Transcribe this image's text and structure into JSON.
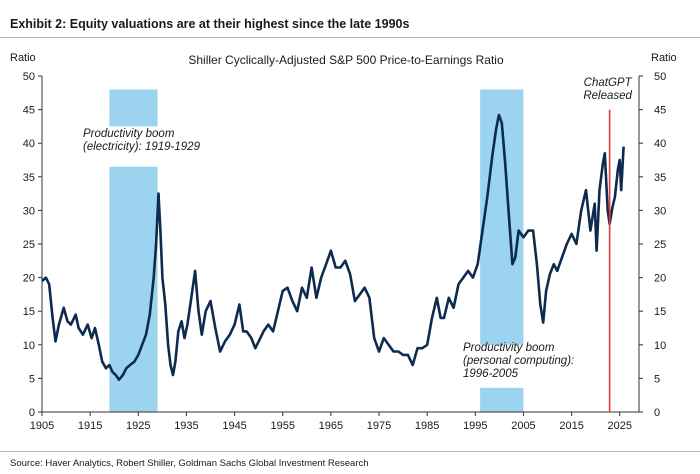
{
  "exhibit_title": "Exhibit 2: Equity valuations are at their highest since the late 1990s",
  "source_note": "Source: Haver Analytics, Robert Shiller, Goldman Sachs Global Investment Research",
  "colors": {
    "line": "#0d2a4f",
    "shade": "#9cd4f0",
    "event_line": "#e23a3a",
    "axis": "#333333"
  },
  "chart_data": {
    "type": "line",
    "title": "Shiller Cyclically-Adjusted S&P 500 Price-to-Earnings Ratio",
    "ylabel_left": "Ratio",
    "ylabel_right": "Ratio",
    "ylim": [
      0,
      50
    ],
    "xlim": [
      1905,
      2029
    ],
    "x_ticks": [
      "1905",
      "1915",
      "1925",
      "1935",
      "1945",
      "1955",
      "1965",
      "1975",
      "1985",
      "1995",
      "2005",
      "2015",
      "2025"
    ],
    "y_ticks": [
      "0",
      "5",
      "10",
      "15",
      "20",
      "25",
      "30",
      "35",
      "40",
      "45",
      "50"
    ],
    "grid": false,
    "series": [
      {
        "values": [
          [
            1905.0,
            19.5
          ],
          [
            1905.8,
            20.0
          ],
          [
            1906.5,
            19.0
          ],
          [
            1907.2,
            14.0
          ],
          [
            1907.8,
            10.5
          ],
          [
            1908.5,
            13.0
          ],
          [
            1909.5,
            15.5
          ],
          [
            1910.3,
            13.5
          ],
          [
            1911.0,
            13.0
          ],
          [
            1912.0,
            14.5
          ],
          [
            1912.6,
            12.5
          ],
          [
            1913.5,
            11.5
          ],
          [
            1914.5,
            13.0
          ],
          [
            1915.3,
            11.0
          ],
          [
            1916.0,
            12.5
          ],
          [
            1916.8,
            10.0
          ],
          [
            1917.5,
            7.5
          ],
          [
            1918.3,
            6.5
          ],
          [
            1919.0,
            7.0
          ],
          [
            1919.6,
            6.0
          ],
          [
            1920.3,
            5.5
          ],
          [
            1921.0,
            4.8
          ],
          [
            1921.8,
            5.5
          ],
          [
            1922.5,
            6.5
          ],
          [
            1923.3,
            7.0
          ],
          [
            1924.2,
            7.5
          ],
          [
            1925.0,
            8.5
          ],
          [
            1925.8,
            10.0
          ],
          [
            1926.6,
            11.5
          ],
          [
            1927.4,
            14.5
          ],
          [
            1928.2,
            20.0
          ],
          [
            1928.7,
            25.0
          ],
          [
            1929.2,
            32.5
          ],
          [
            1929.6,
            27.0
          ],
          [
            1930.0,
            20.0
          ],
          [
            1930.6,
            16.0
          ],
          [
            1931.2,
            10.0
          ],
          [
            1931.7,
            7.0
          ],
          [
            1932.2,
            5.5
          ],
          [
            1932.7,
            7.5
          ],
          [
            1933.3,
            12.0
          ],
          [
            1934.0,
            13.5
          ],
          [
            1934.6,
            11.0
          ],
          [
            1935.2,
            13.0
          ],
          [
            1936.0,
            17.0
          ],
          [
            1936.8,
            21.0
          ],
          [
            1937.5,
            15.0
          ],
          [
            1938.2,
            11.5
          ],
          [
            1939.0,
            15.0
          ],
          [
            1940.0,
            16.5
          ],
          [
            1941.0,
            12.5
          ],
          [
            1942.0,
            9.0
          ],
          [
            1943.0,
            10.5
          ],
          [
            1944.0,
            11.5
          ],
          [
            1945.0,
            13.0
          ],
          [
            1946.0,
            16.0
          ],
          [
            1946.8,
            12.0
          ],
          [
            1947.5,
            12.0
          ],
          [
            1948.5,
            11.0
          ],
          [
            1949.3,
            9.5
          ],
          [
            1950.0,
            10.5
          ],
          [
            1951.0,
            12.0
          ],
          [
            1952.0,
            13.0
          ],
          [
            1953.0,
            12.0
          ],
          [
            1954.0,
            15.0
          ],
          [
            1955.0,
            18.0
          ],
          [
            1956.0,
            18.5
          ],
          [
            1957.0,
            16.5
          ],
          [
            1958.0,
            15.0
          ],
          [
            1959.0,
            18.5
          ],
          [
            1960.0,
            17.0
          ],
          [
            1961.0,
            21.5
          ],
          [
            1962.0,
            17.0
          ],
          [
            1963.0,
            20.0
          ],
          [
            1964.0,
            22.0
          ],
          [
            1965.0,
            24.0
          ],
          [
            1966.0,
            21.5
          ],
          [
            1967.0,
            21.5
          ],
          [
            1968.0,
            22.5
          ],
          [
            1969.0,
            20.5
          ],
          [
            1970.0,
            16.5
          ],
          [
            1971.0,
            17.5
          ],
          [
            1972.0,
            18.5
          ],
          [
            1973.0,
            17.0
          ],
          [
            1974.0,
            11.0
          ],
          [
            1975.0,
            9.0
          ],
          [
            1976.0,
            11.0
          ],
          [
            1977.0,
            10.0
          ],
          [
            1978.0,
            9.0
          ],
          [
            1979.0,
            9.0
          ],
          [
            1980.0,
            8.5
          ],
          [
            1981.0,
            8.5
          ],
          [
            1982.0,
            7.0
          ],
          [
            1983.0,
            9.5
          ],
          [
            1984.0,
            9.5
          ],
          [
            1985.0,
            10.0
          ],
          [
            1986.0,
            14.0
          ],
          [
            1987.0,
            17.0
          ],
          [
            1987.8,
            14.0
          ],
          [
            1988.5,
            14.0
          ],
          [
            1989.5,
            17.0
          ],
          [
            1990.5,
            15.5
          ],
          [
            1991.5,
            19.0
          ],
          [
            1992.5,
            20.0
          ],
          [
            1993.5,
            21.0
          ],
          [
            1994.5,
            20.0
          ],
          [
            1995.5,
            22.0
          ],
          [
            1996.5,
            27.0
          ],
          [
            1997.5,
            32.0
          ],
          [
            1998.5,
            38.0
          ],
          [
            1999.3,
            42.0
          ],
          [
            1999.9,
            44.2
          ],
          [
            2000.5,
            43.0
          ],
          [
            2001.2,
            37.0
          ],
          [
            2002.0,
            29.0
          ],
          [
            2002.7,
            22.0
          ],
          [
            2003.3,
            23.0
          ],
          [
            2004.0,
            27.0
          ],
          [
            2005.0,
            26.0
          ],
          [
            2006.0,
            27.0
          ],
          [
            2007.0,
            27.0
          ],
          [
            2007.8,
            22.0
          ],
          [
            2008.5,
            16.0
          ],
          [
            2009.1,
            13.3
          ],
          [
            2009.7,
            18.0
          ],
          [
            2010.5,
            20.5
          ],
          [
            2011.3,
            22.0
          ],
          [
            2012.0,
            21.0
          ],
          [
            2013.0,
            23.0
          ],
          [
            2014.0,
            25.0
          ],
          [
            2015.0,
            26.5
          ],
          [
            2016.0,
            25.0
          ],
          [
            2017.0,
            30.0
          ],
          [
            2018.0,
            33.0
          ],
          [
            2018.9,
            27.0
          ],
          [
            2019.8,
            31.0
          ],
          [
            2020.2,
            24.0
          ],
          [
            2020.8,
            33.0
          ],
          [
            2021.5,
            37.0
          ],
          [
            2021.9,
            38.5
          ],
          [
            2022.5,
            30.0
          ],
          [
            2022.9,
            28.0
          ],
          [
            2023.5,
            30.5
          ],
          [
            2024.0,
            32.0
          ],
          [
            2024.6,
            36.0
          ],
          [
            2025.0,
            37.5
          ],
          [
            2025.3,
            33.0
          ],
          [
            2025.8,
            39.5
          ]
        ]
      }
    ],
    "shaded_periods": [
      {
        "start": 1919,
        "end": 1929,
        "label_lines": [
          "Productivity boom",
          "(electricity): 1919-1929"
        ]
      },
      {
        "start": 1996,
        "end": 2005,
        "label_lines": [
          "Productivity boom",
          "(personal computing):",
          "1996-2005"
        ]
      }
    ],
    "event_lines": [
      {
        "x": 2022.9,
        "label_lines": [
          "ChatGPT",
          "Released"
        ]
      }
    ]
  }
}
